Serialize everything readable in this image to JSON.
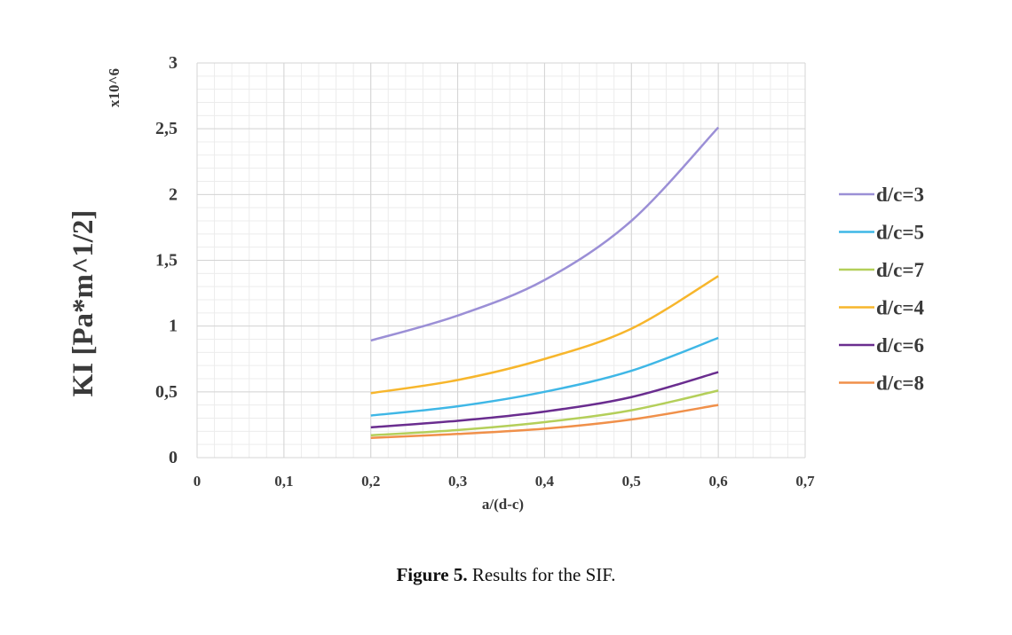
{
  "chart_data": {
    "type": "line",
    "xlabel": "a/(d-c)",
    "ylabel": "KI [Pa*m^1/2]",
    "y_multiplier": "x10^6",
    "xlim": [
      0,
      0.7
    ],
    "ylim": [
      0,
      3
    ],
    "x_ticks": [
      "0",
      "0,1",
      "0,2",
      "0,3",
      "0,4",
      "0,5",
      "0,6",
      "0,7"
    ],
    "y_ticks": [
      "0",
      "0,5",
      "1",
      "1,5",
      "2",
      "2,5",
      "3"
    ],
    "grid": true,
    "legend_position": "right",
    "x": [
      0.2,
      0.3,
      0.4,
      0.5,
      0.6
    ],
    "series": [
      {
        "name": "d/c=3",
        "color": "#9b8fd6",
        "values": [
          0.89,
          1.08,
          1.35,
          1.8,
          2.51
        ]
      },
      {
        "name": "d/c=5",
        "color": "#3fb7e6",
        "values": [
          0.32,
          0.39,
          0.5,
          0.66,
          0.91
        ]
      },
      {
        "name": "d/c=7",
        "color": "#b4cf5a",
        "values": [
          0.17,
          0.21,
          0.27,
          0.36,
          0.51
        ]
      },
      {
        "name": "d/c=4",
        "color": "#f7b62c",
        "values": [
          0.49,
          0.59,
          0.75,
          0.98,
          1.38
        ]
      },
      {
        "name": "d/c=6",
        "color": "#6a2d8f",
        "values": [
          0.23,
          0.28,
          0.35,
          0.46,
          0.65
        ]
      },
      {
        "name": "d/c=8",
        "color": "#f0904a",
        "values": [
          0.15,
          0.18,
          0.22,
          0.29,
          0.4
        ]
      }
    ]
  },
  "caption": {
    "label": "Figure 5.",
    "text": " Results for the SIF."
  }
}
